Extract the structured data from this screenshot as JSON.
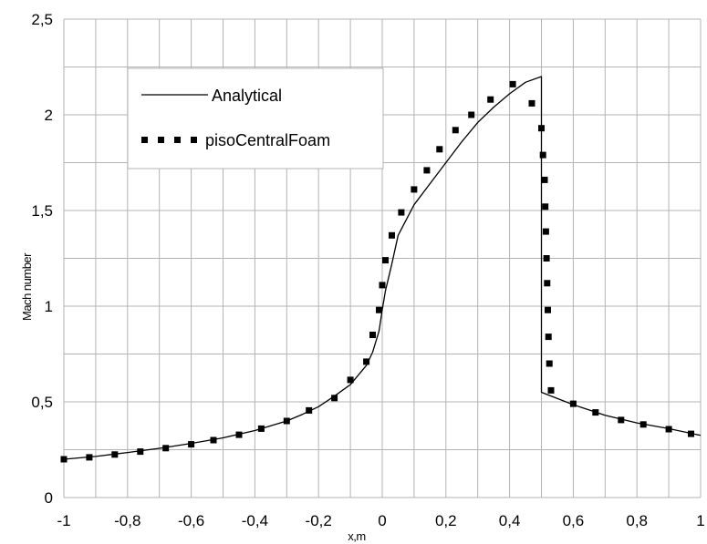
{
  "chart_data": {
    "type": "line",
    "title": "",
    "xlabel": "x,m",
    "ylabel": "Mach number",
    "xlim": [
      -1,
      1
    ],
    "ylim": [
      0,
      2.5
    ],
    "grid": true,
    "legend_position": "top-left",
    "x_ticks": [
      -1,
      -0.8,
      -0.6,
      -0.4,
      -0.2,
      0,
      0.2,
      0.4,
      0.6,
      0.8,
      1
    ],
    "x_tick_labels": [
      "-1",
      "-0,8",
      "-0,6",
      "-0,4",
      "-0,2",
      "0",
      "0,2",
      "0,4",
      "0,6",
      "0,8",
      "1"
    ],
    "y_ticks": [
      0,
      0.5,
      1,
      1.5,
      2,
      2.5
    ],
    "y_tick_labels": [
      "0",
      "0,5",
      "1",
      "1,5",
      "2",
      "2,5"
    ],
    "series": [
      {
        "name": "Analytical",
        "style": "solid-line",
        "color": "#000000",
        "x": [
          -1,
          -0.9,
          -0.8,
          -0.7,
          -0.6,
          -0.5,
          -0.4,
          -0.3,
          -0.25,
          -0.2,
          -0.15,
          -0.1,
          -0.05,
          -0.03,
          -0.01,
          0,
          0.01,
          0.03,
          0.05,
          0.1,
          0.15,
          0.2,
          0.25,
          0.3,
          0.35,
          0.4,
          0.45,
          0.5,
          0.5,
          0.6,
          0.7,
          0.8,
          0.9,
          1
        ],
        "y": [
          0.2,
          0.215,
          0.235,
          0.257,
          0.283,
          0.312,
          0.35,
          0.4,
          0.435,
          0.475,
          0.53,
          0.59,
          0.69,
          0.76,
          0.87,
          0.98,
          1.08,
          1.22,
          1.37,
          1.53,
          1.64,
          1.75,
          1.86,
          1.96,
          2.04,
          2.11,
          2.17,
          2.2,
          0.55,
          0.485,
          0.43,
          0.39,
          0.36,
          0.325
        ]
      },
      {
        "name": "pisoCentralFoam",
        "style": "square-markers",
        "color": "#000000",
        "x": [
          -1,
          -0.92,
          -0.84,
          -0.76,
          -0.68,
          -0.6,
          -0.53,
          -0.45,
          -0.38,
          -0.3,
          -0.23,
          -0.15,
          -0.1,
          -0.05,
          -0.03,
          -0.01,
          0,
          0.01,
          0.03,
          0.06,
          0.1,
          0.14,
          0.18,
          0.23,
          0.28,
          0.34,
          0.41,
          0.47,
          0.5,
          0.505,
          0.51,
          0.512,
          0.514,
          0.516,
          0.518,
          0.52,
          0.522,
          0.525,
          0.53,
          0.6,
          0.67,
          0.75,
          0.82,
          0.9,
          0.97
        ],
        "y": [
          0.2,
          0.21,
          0.225,
          0.24,
          0.258,
          0.278,
          0.3,
          0.328,
          0.36,
          0.4,
          0.455,
          0.52,
          0.615,
          0.71,
          0.85,
          0.98,
          1.11,
          1.24,
          1.37,
          1.49,
          1.61,
          1.71,
          1.82,
          1.92,
          2.0,
          2.08,
          2.16,
          2.06,
          1.93,
          1.79,
          1.66,
          1.52,
          1.39,
          1.25,
          1.12,
          0.98,
          0.84,
          0.7,
          0.56,
          0.49,
          0.445,
          0.405,
          0.382,
          0.357,
          0.333
        ]
      }
    ]
  }
}
